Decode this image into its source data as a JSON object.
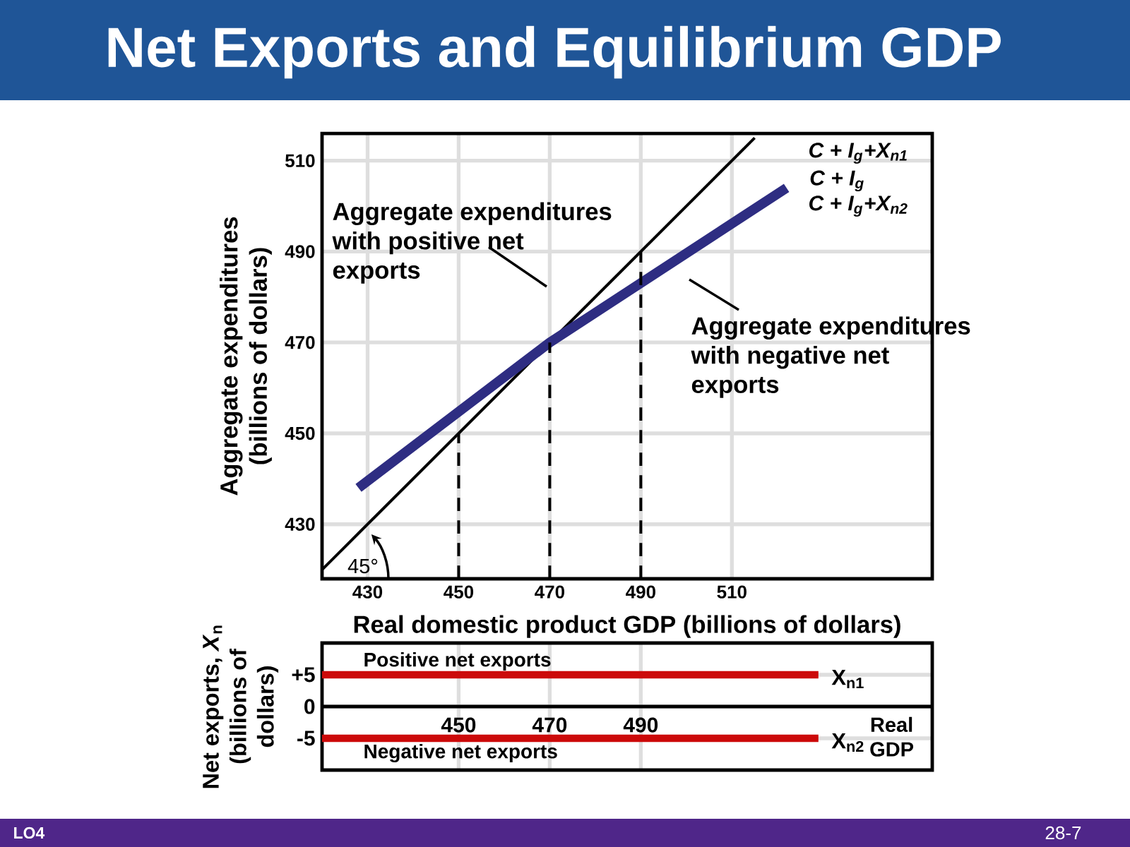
{
  "chart_data": [
    {
      "type": "line",
      "title": "Net Exports and Equilibrium GDP",
      "xlabel": "Real domestic product GDP (billions of dollars)",
      "ylabel": "Aggregate expenditures (billions of dollars)",
      "xlim": [
        420,
        554
      ],
      "ylim": [
        418,
        516
      ],
      "xticks": [
        430,
        450,
        470,
        490,
        510
      ],
      "yticks": [
        430,
        450,
        470,
        490,
        510
      ],
      "grid": true,
      "series": [
        {
          "color": "#000000",
          "x": [
            420,
            515
          ],
          "values": [
            420,
            515
          ]
        },
        {
          "name": "C + I$_{g}$",
          "color": "#2e2d82",
          "x": [
            428,
            470,
            522
          ],
          "values": [
            438,
            470,
            504
          ]
        },
        {
          "color": "#000000",
          "line_style": "dashed",
          "x": [
            450,
            450
          ],
          "values": [
            418,
            450
          ]
        },
        {
          "color": "#000000",
          "line_style": "dashed",
          "x": [
            470,
            470
          ],
          "values": [
            418,
            470
          ]
        },
        {
          "color": "#000000",
          "line_style": "dashed",
          "x": [
            490,
            490
          ],
          "values": [
            418,
            490
          ]
        }
      ],
      "annotations": [
        "Aggregate expenditures with positive net exports",
        "Aggregate expenditures with negative net exports",
        "C + I$_{g}$+X$_{n1}$",
        "C + I$_{g}$+X$_{n2}$",
        "45°"
      ]
    },
    {
      "type": "line",
      "xlabel": "Real GDP",
      "ylabel": "Net exports, *X*$_{n}$ (billions of dollars)",
      "xlim": [
        420,
        554
      ],
      "ylim": [
        -10,
        10
      ],
      "xticks": [
        450,
        470,
        490
      ],
      "yticks": [
        {
          "value": 5,
          "label": "+5"
        },
        0,
        -5
      ],
      "grid": true,
      "series": [
        {
          "name": "X$_{n1}$",
          "color": "#cc0a0a",
          "x": [
            420,
            529
          ],
          "values": [
            5,
            5
          ]
        },
        {
          "name": "X$_{n2}$",
          "color": "#cc0a0a",
          "x": [
            420,
            529
          ],
          "values": [
            -5,
            -5
          ]
        }
      ],
      "annotations": [
        "Positive net exports",
        "Negative net exports",
        "LO4",
        "28-7"
      ]
    }
  ]
}
